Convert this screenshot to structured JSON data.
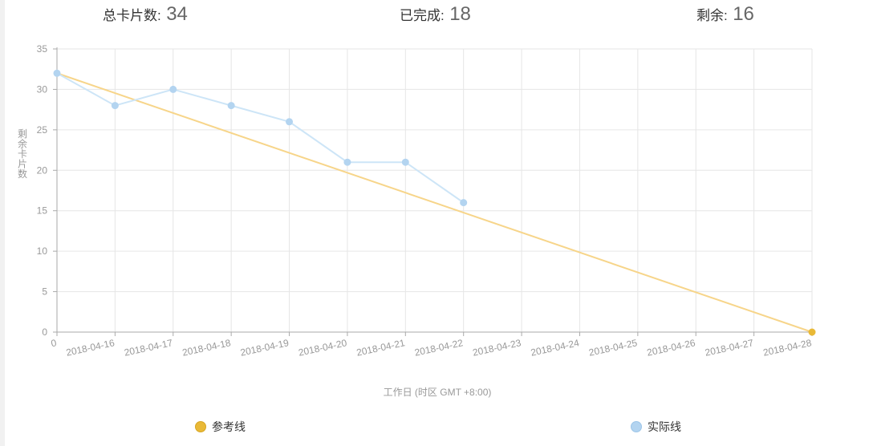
{
  "stats": {
    "total_label": "总卡片数:",
    "total_value": "34",
    "done_label": "已完成:",
    "done_value": "18",
    "remaining_label": "剩余:",
    "remaining_value": "16"
  },
  "chart_data": {
    "type": "line",
    "xlabel": "工作日 (时区 GMT +8:00)",
    "ylabel": "剩余卡片数",
    "categories": [
      "0",
      "2018-04-16",
      "2018-04-17",
      "2018-04-18",
      "2018-04-19",
      "2018-04-20",
      "2018-04-21",
      "2018-04-22",
      "2018-04-23",
      "2018-04-24",
      "2018-04-25",
      "2018-04-26",
      "2018-04-27",
      "2018-04-28"
    ],
    "ylim": [
      0,
      35
    ],
    "yticks": [
      0,
      5,
      10,
      15,
      20,
      25,
      30,
      35
    ],
    "grid": true,
    "legend_position": "bottom",
    "series": [
      {
        "name": "参考线",
        "color": "#f7d58a",
        "marker_color": "#e9b937",
        "points": [
          [
            0,
            32
          ],
          [
            13,
            0
          ]
        ],
        "visible_markers": [
          13
        ]
      },
      {
        "name": "实际线",
        "color": "#cde5f7",
        "marker_color": "#b3d4f0",
        "points": [
          [
            0,
            32
          ],
          [
            1,
            28
          ],
          [
            2,
            30
          ],
          [
            3,
            28
          ],
          [
            4,
            26
          ],
          [
            5,
            21
          ],
          [
            6,
            21
          ],
          [
            7,
            16
          ]
        ],
        "visible_markers": [
          0,
          1,
          2,
          3,
          4,
          5,
          6,
          7
        ]
      }
    ]
  }
}
